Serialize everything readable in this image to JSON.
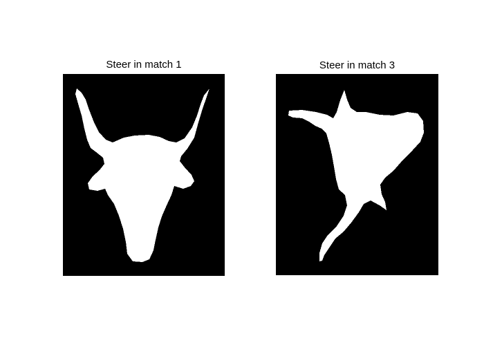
{
  "panels": [
    {
      "title": "Steer in match 1",
      "background_color": "#000000",
      "silhouette_color": "#ffffff"
    },
    {
      "title": "Steer in match 3",
      "background_color": "#000000",
      "silhouette_color": "#ffffff"
    }
  ]
}
